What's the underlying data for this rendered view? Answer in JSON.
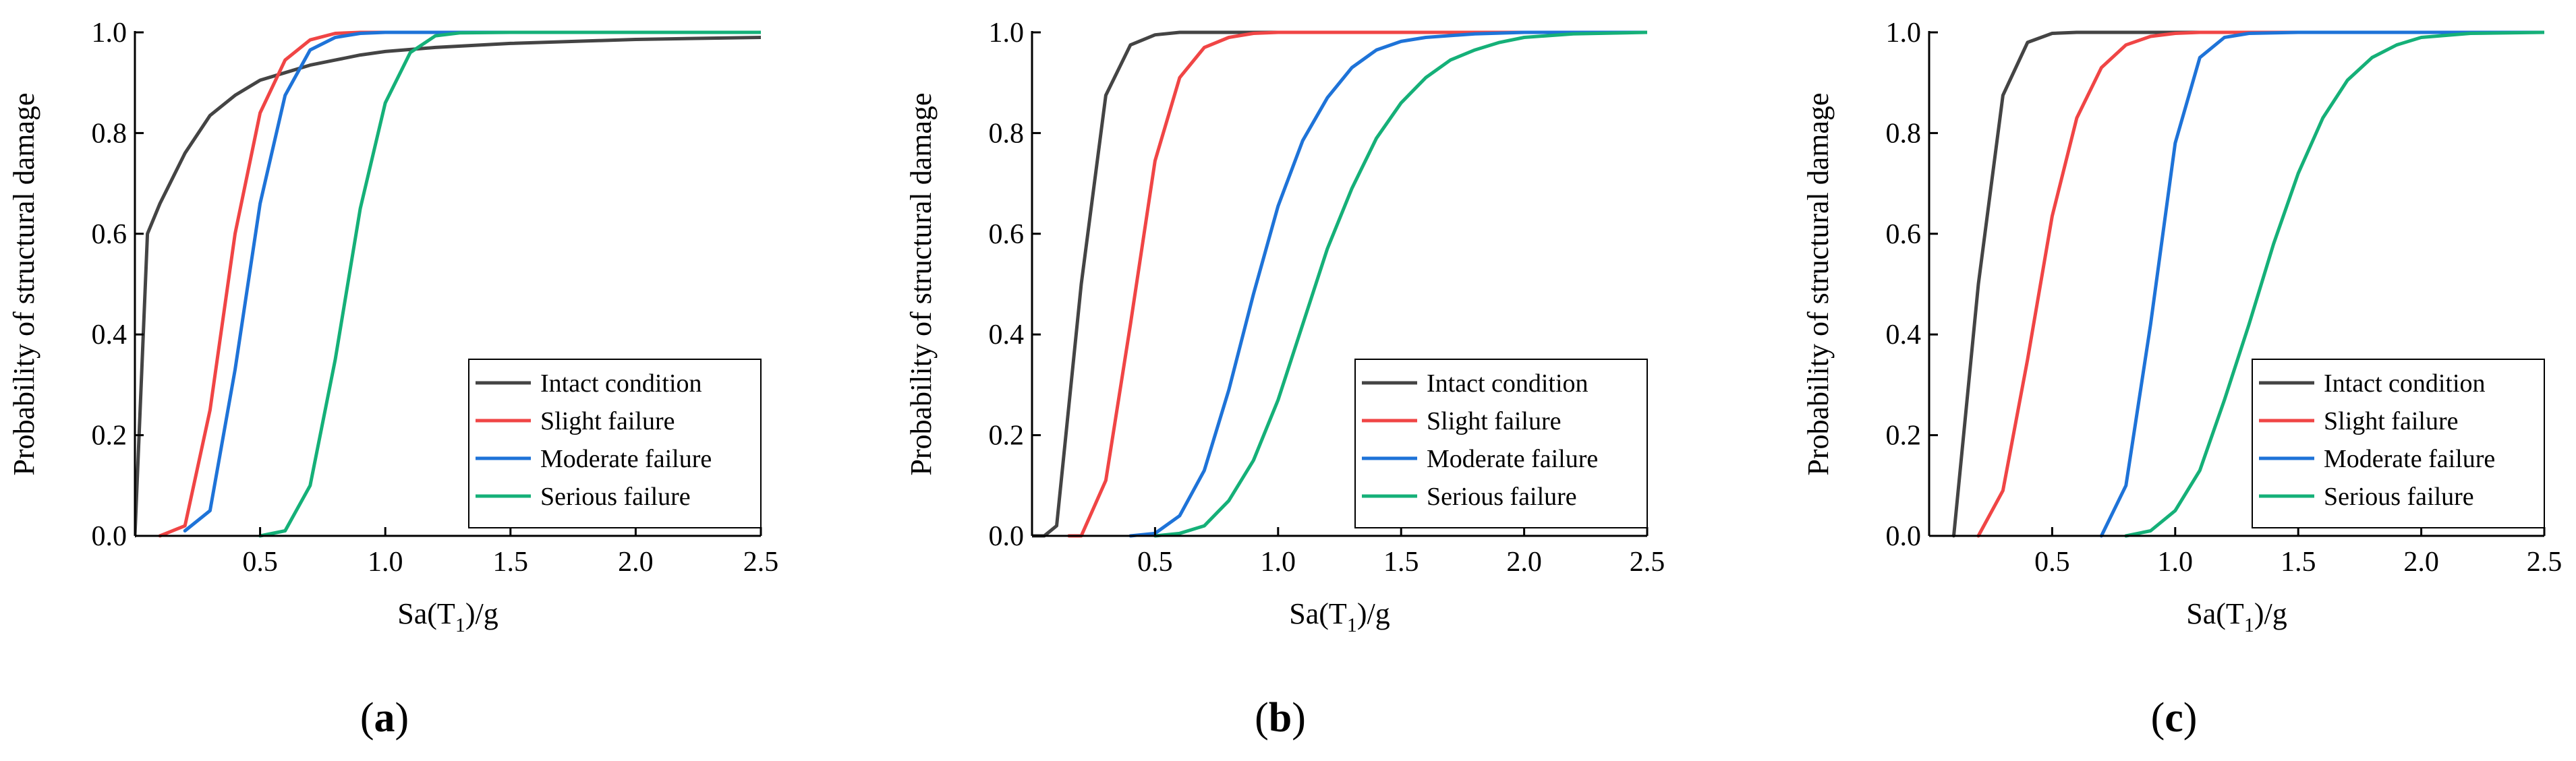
{
  "chart_data": [
    {
      "type": "line",
      "panel_label": "(a)",
      "caption": {
        "open": "(",
        "letter": "a",
        "close": ")"
      },
      "ylabel": "Probability of structural damage",
      "xlabel": {
        "pre": "Sa(T",
        "sub": "1",
        "post": ")/g"
      },
      "xlim": [
        0,
        2.5
      ],
      "ylim": [
        0,
        1.0
      ],
      "xticks": [
        0.5,
        1.0,
        1.5,
        2.0,
        2.5
      ],
      "xtick_labels": [
        "0.5",
        "1.0",
        "1.5",
        "2.0",
        "2.5"
      ],
      "yticks": [
        0,
        0.2,
        0.4,
        0.6,
        0.8,
        1.0
      ],
      "ytick_labels": [
        "0.0",
        "0.2",
        "0.4",
        "0.6",
        "0.8",
        "1.0"
      ],
      "legend_position": "bottom-right",
      "series": [
        {
          "name": "Intact condition",
          "color": "#444444",
          "x": [
            0,
            0.05,
            0.1,
            0.2,
            0.3,
            0.4,
            0.5,
            0.6,
            0.7,
            0.8,
            0.9,
            1.0,
            1.2,
            1.5,
            2.0,
            2.5
          ],
          "y": [
            0,
            0.6,
            0.66,
            0.76,
            0.835,
            0.875,
            0.905,
            0.92,
            0.935,
            0.945,
            0.955,
            0.962,
            0.97,
            0.978,
            0.986,
            0.99
          ]
        },
        {
          "name": "Slight failure",
          "color": "#f04545",
          "x": [
            0.1,
            0.2,
            0.3,
            0.4,
            0.5,
            0.6,
            0.7,
            0.8,
            0.9,
            1.0,
            2.5
          ],
          "y": [
            0,
            0.02,
            0.25,
            0.6,
            0.84,
            0.945,
            0.985,
            0.998,
            1.0,
            1.0,
            1.0
          ]
        },
        {
          "name": "Moderate failure",
          "color": "#1e73d8",
          "x": [
            0.2,
            0.3,
            0.4,
            0.5,
            0.6,
            0.7,
            0.8,
            0.9,
            1.0,
            2.5
          ],
          "y": [
            0.01,
            0.05,
            0.33,
            0.66,
            0.875,
            0.965,
            0.99,
            0.998,
            1.0,
            1.0
          ]
        },
        {
          "name": "Serious failure",
          "color": "#15b078",
          "x": [
            0.5,
            0.6,
            0.7,
            0.8,
            0.9,
            1.0,
            1.1,
            1.2,
            1.3,
            1.5,
            2.5
          ],
          "y": [
            0,
            0.01,
            0.1,
            0.35,
            0.65,
            0.86,
            0.96,
            0.993,
            0.999,
            1.0,
            1.0
          ]
        }
      ]
    },
    {
      "type": "line",
      "panel_label": "(b)",
      "caption": {
        "open": "(",
        "letter": "b",
        "close": ")"
      },
      "ylabel": "Probability of structural damage",
      "xlabel": {
        "pre": "Sa(T",
        "sub": "1",
        "post": ")/g"
      },
      "xlim": [
        0,
        2.5
      ],
      "ylim": [
        0,
        1.0
      ],
      "xticks": [
        0.5,
        1.0,
        1.5,
        2.0,
        2.5
      ],
      "xtick_labels": [
        "0.5",
        "1.0",
        "1.5",
        "2.0",
        "2.5"
      ],
      "yticks": [
        0,
        0.2,
        0.4,
        0.6,
        0.8,
        1.0
      ],
      "ytick_labels": [
        "0.0",
        "0.2",
        "0.4",
        "0.6",
        "0.8",
        "1.0"
      ],
      "legend_position": "bottom-right",
      "series": [
        {
          "name": "Intact condition",
          "color": "#444444",
          "x": [
            0,
            0.05,
            0.1,
            0.2,
            0.3,
            0.4,
            0.5,
            0.6,
            2.5
          ],
          "y": [
            0,
            0.0,
            0.02,
            0.5,
            0.875,
            0.975,
            0.995,
            1.0,
            1.0
          ]
        },
        {
          "name": "Slight failure",
          "color": "#f04545",
          "x": [
            0.15,
            0.2,
            0.3,
            0.4,
            0.5,
            0.6,
            0.7,
            0.8,
            0.9,
            1.0,
            2.5
          ],
          "y": [
            0,
            0.0,
            0.11,
            0.42,
            0.745,
            0.91,
            0.97,
            0.99,
            0.998,
            1.0,
            1.0
          ]
        },
        {
          "name": "Moderate failure",
          "color": "#1e73d8",
          "x": [
            0.4,
            0.5,
            0.6,
            0.7,
            0.8,
            0.9,
            1.0,
            1.1,
            1.2,
            1.3,
            1.4,
            1.5,
            1.6,
            1.8,
            2.0,
            2.5
          ],
          "y": [
            0,
            0.005,
            0.04,
            0.13,
            0.29,
            0.48,
            0.655,
            0.785,
            0.87,
            0.93,
            0.965,
            0.982,
            0.99,
            0.997,
            1.0,
            1.0
          ]
        },
        {
          "name": "Serious failure",
          "color": "#15b078",
          "x": [
            0.5,
            0.6,
            0.7,
            0.8,
            0.9,
            1.0,
            1.1,
            1.2,
            1.3,
            1.4,
            1.5,
            1.6,
            1.7,
            1.8,
            1.9,
            2.0,
            2.2,
            2.5
          ],
          "y": [
            0,
            0.005,
            0.02,
            0.07,
            0.15,
            0.27,
            0.42,
            0.57,
            0.69,
            0.79,
            0.86,
            0.91,
            0.945,
            0.965,
            0.98,
            0.99,
            0.997,
            1.0
          ]
        }
      ]
    },
    {
      "type": "line",
      "panel_label": "(c)",
      "caption": {
        "open": "(",
        "letter": "c",
        "close": ")"
      },
      "ylabel": "Probability of structural damage",
      "xlabel": {
        "pre": "Sa(T",
        "sub": "1",
        "post": ")/g"
      },
      "xlim": [
        0,
        2.5
      ],
      "ylim": [
        0,
        1.0
      ],
      "xticks": [
        0.5,
        1.0,
        1.5,
        2.0,
        2.5
      ],
      "xtick_labels": [
        "0.5",
        "1.0",
        "1.5",
        "2.0",
        "2.5"
      ],
      "yticks": [
        0,
        0.2,
        0.4,
        0.6,
        0.8,
        1.0
      ],
      "ytick_labels": [
        "0.0",
        "0.2",
        "0.4",
        "0.6",
        "0.8",
        "1.0"
      ],
      "legend_position": "bottom-right",
      "series": [
        {
          "name": "Intact condition",
          "color": "#444444",
          "x": [
            0.1,
            0.2,
            0.3,
            0.4,
            0.5,
            0.6,
            2.5
          ],
          "y": [
            0.0,
            0.5,
            0.875,
            0.98,
            0.998,
            1.0,
            1.0
          ]
        },
        {
          "name": "Slight failure",
          "color": "#f04545",
          "x": [
            0.2,
            0.3,
            0.4,
            0.5,
            0.6,
            0.7,
            0.8,
            0.9,
            1.0,
            1.1,
            2.5
          ],
          "y": [
            0,
            0.09,
            0.35,
            0.635,
            0.83,
            0.93,
            0.975,
            0.992,
            0.998,
            1.0,
            1.0
          ]
        },
        {
          "name": "Moderate failure",
          "color": "#1e73d8",
          "x": [
            0.7,
            0.8,
            0.9,
            1.0,
            1.1,
            1.2,
            1.3,
            1.5,
            2.5
          ],
          "y": [
            0,
            0.1,
            0.42,
            0.78,
            0.95,
            0.99,
            0.998,
            1.0,
            1.0
          ]
        },
        {
          "name": "Serious failure",
          "color": "#15b078",
          "x": [
            0.8,
            0.9,
            1.0,
            1.1,
            1.2,
            1.3,
            1.4,
            1.5,
            1.6,
            1.7,
            1.8,
            1.9,
            2.0,
            2.2,
            2.5
          ],
          "y": [
            0,
            0.01,
            0.05,
            0.13,
            0.27,
            0.42,
            0.58,
            0.72,
            0.83,
            0.905,
            0.95,
            0.975,
            0.99,
            0.998,
            1.0
          ]
        }
      ]
    }
  ]
}
